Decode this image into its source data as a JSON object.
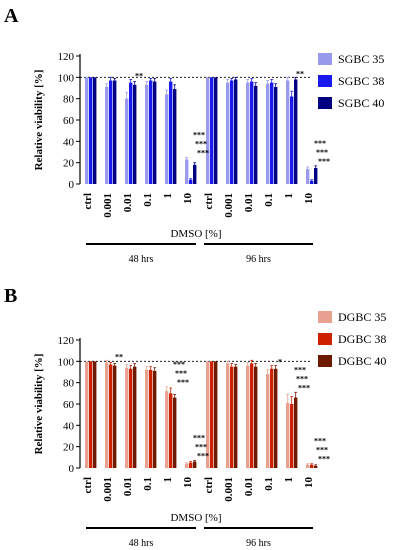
{
  "chart_data": [
    {
      "type": "bar",
      "panel_label": "A",
      "ylabel": "Relative viability [%]",
      "xlabel": "DMSO [%]",
      "ylim": [
        0,
        120
      ],
      "yticks": [
        0,
        20,
        40,
        60,
        80,
        100,
        120
      ],
      "reference_line": 100,
      "categories": [
        "ctrl",
        "0.001",
        "0.01",
        "0.1",
        "1",
        "10"
      ],
      "groups": [
        "48 hrs",
        "96 hrs"
      ],
      "legend_position": "top-right",
      "series": [
        {
          "name": "SGBC 35",
          "color": "#9999ee",
          "values": [
            [
              100,
              91,
              80,
              93,
              84,
              23
            ],
            [
              100,
              95,
              95,
              94,
              97,
              14
            ]
          ],
          "errors": [
            [
              0,
              3,
              6,
              3,
              4,
              2
            ],
            [
              0,
              3,
              3,
              3,
              3,
              2
            ]
          ]
        },
        {
          "name": "SGBC 38",
          "color": "#1a1aee",
          "values": [
            [
              100,
              97,
              95,
              97,
              96,
              4
            ],
            [
              100,
              97,
              96,
              95,
              82,
              3
            ]
          ],
          "errors": [
            [
              0,
              3,
              3,
              2,
              3,
              1
            ],
            [
              0,
              2,
              3,
              3,
              5,
              1
            ]
          ]
        },
        {
          "name": "SGBC 40",
          "color": "#000080",
          "values": [
            [
              100,
              97,
              93,
              96,
              89,
              18
            ],
            [
              100,
              98,
              92,
              91,
              98,
              15
            ]
          ],
          "errors": [
            [
              0,
              2,
              3,
              3,
              4,
              2
            ],
            [
              0,
              2,
              3,
              3,
              2,
              2
            ]
          ]
        }
      ],
      "annotations": [
        {
          "group": 0,
          "category": 2,
          "text": "**"
        },
        {
          "group": 0,
          "category": 5,
          "lines": [
            "***",
            "***",
            "***"
          ]
        },
        {
          "group": 1,
          "category": 4,
          "text": "**"
        },
        {
          "group": 1,
          "category": 5,
          "lines": [
            "***",
            "***",
            "***"
          ]
        }
      ]
    },
    {
      "type": "bar",
      "panel_label": "B",
      "ylabel": "Relative viability [%]",
      "xlabel": "DMSO [%]",
      "ylim": [
        0,
        120
      ],
      "yticks": [
        0,
        20,
        40,
        60,
        80,
        100,
        120
      ],
      "reference_line": 100,
      "categories": [
        "ctrl",
        "0.001",
        "0.01",
        "0.1",
        "1",
        "10"
      ],
      "groups": [
        "48 hrs",
        "96 hrs"
      ],
      "legend_position": "top-right",
      "series": [
        {
          "name": "DGBC 35",
          "color": "#e8a090",
          "values": [
            [
              100,
              99,
              94,
              92,
              72,
              4
            ],
            [
              100,
              98,
              96,
              88,
              61,
              3
            ]
          ],
          "errors": [
            [
              0,
              2,
              3,
              3,
              4,
              1
            ],
            [
              0,
              2,
              3,
              4,
              8,
              1
            ]
          ]
        },
        {
          "name": "DGBC 38",
          "color": "#cc2200",
          "values": [
            [
              100,
              97,
              93,
              92,
              70,
              5
            ],
            [
              100,
              95,
              98,
              93,
              60,
              3
            ]
          ],
          "errors": [
            [
              0,
              2,
              3,
              3,
              5,
              1
            ],
            [
              0,
              3,
              3,
              3,
              7,
              1
            ]
          ]
        },
        {
          "name": "DGBC 40",
          "color": "#6e1a00",
          "values": [
            [
              100,
              96,
              95,
              91,
              66,
              6
            ],
            [
              100,
              95,
              95,
              93,
              66,
              2
            ]
          ],
          "errors": [
            [
              0,
              2,
              3,
              3,
              3,
              1
            ],
            [
              0,
              2,
              3,
              3,
              5,
              1
            ]
          ]
        }
      ],
      "annotations": [
        {
          "group": 0,
          "category": 1,
          "text": "**"
        },
        {
          "group": 0,
          "category": 4,
          "lines": [
            "***",
            "***",
            "***"
          ]
        },
        {
          "group": 0,
          "category": 5,
          "lines": [
            "***",
            "***",
            "***"
          ]
        },
        {
          "group": 1,
          "category": 3,
          "text": "*"
        },
        {
          "group": 1,
          "category": 4,
          "lines": [
            "***",
            "***",
            "***"
          ]
        },
        {
          "group": 1,
          "category": 5,
          "lines": [
            "***",
            "***",
            "***"
          ]
        }
      ]
    }
  ]
}
